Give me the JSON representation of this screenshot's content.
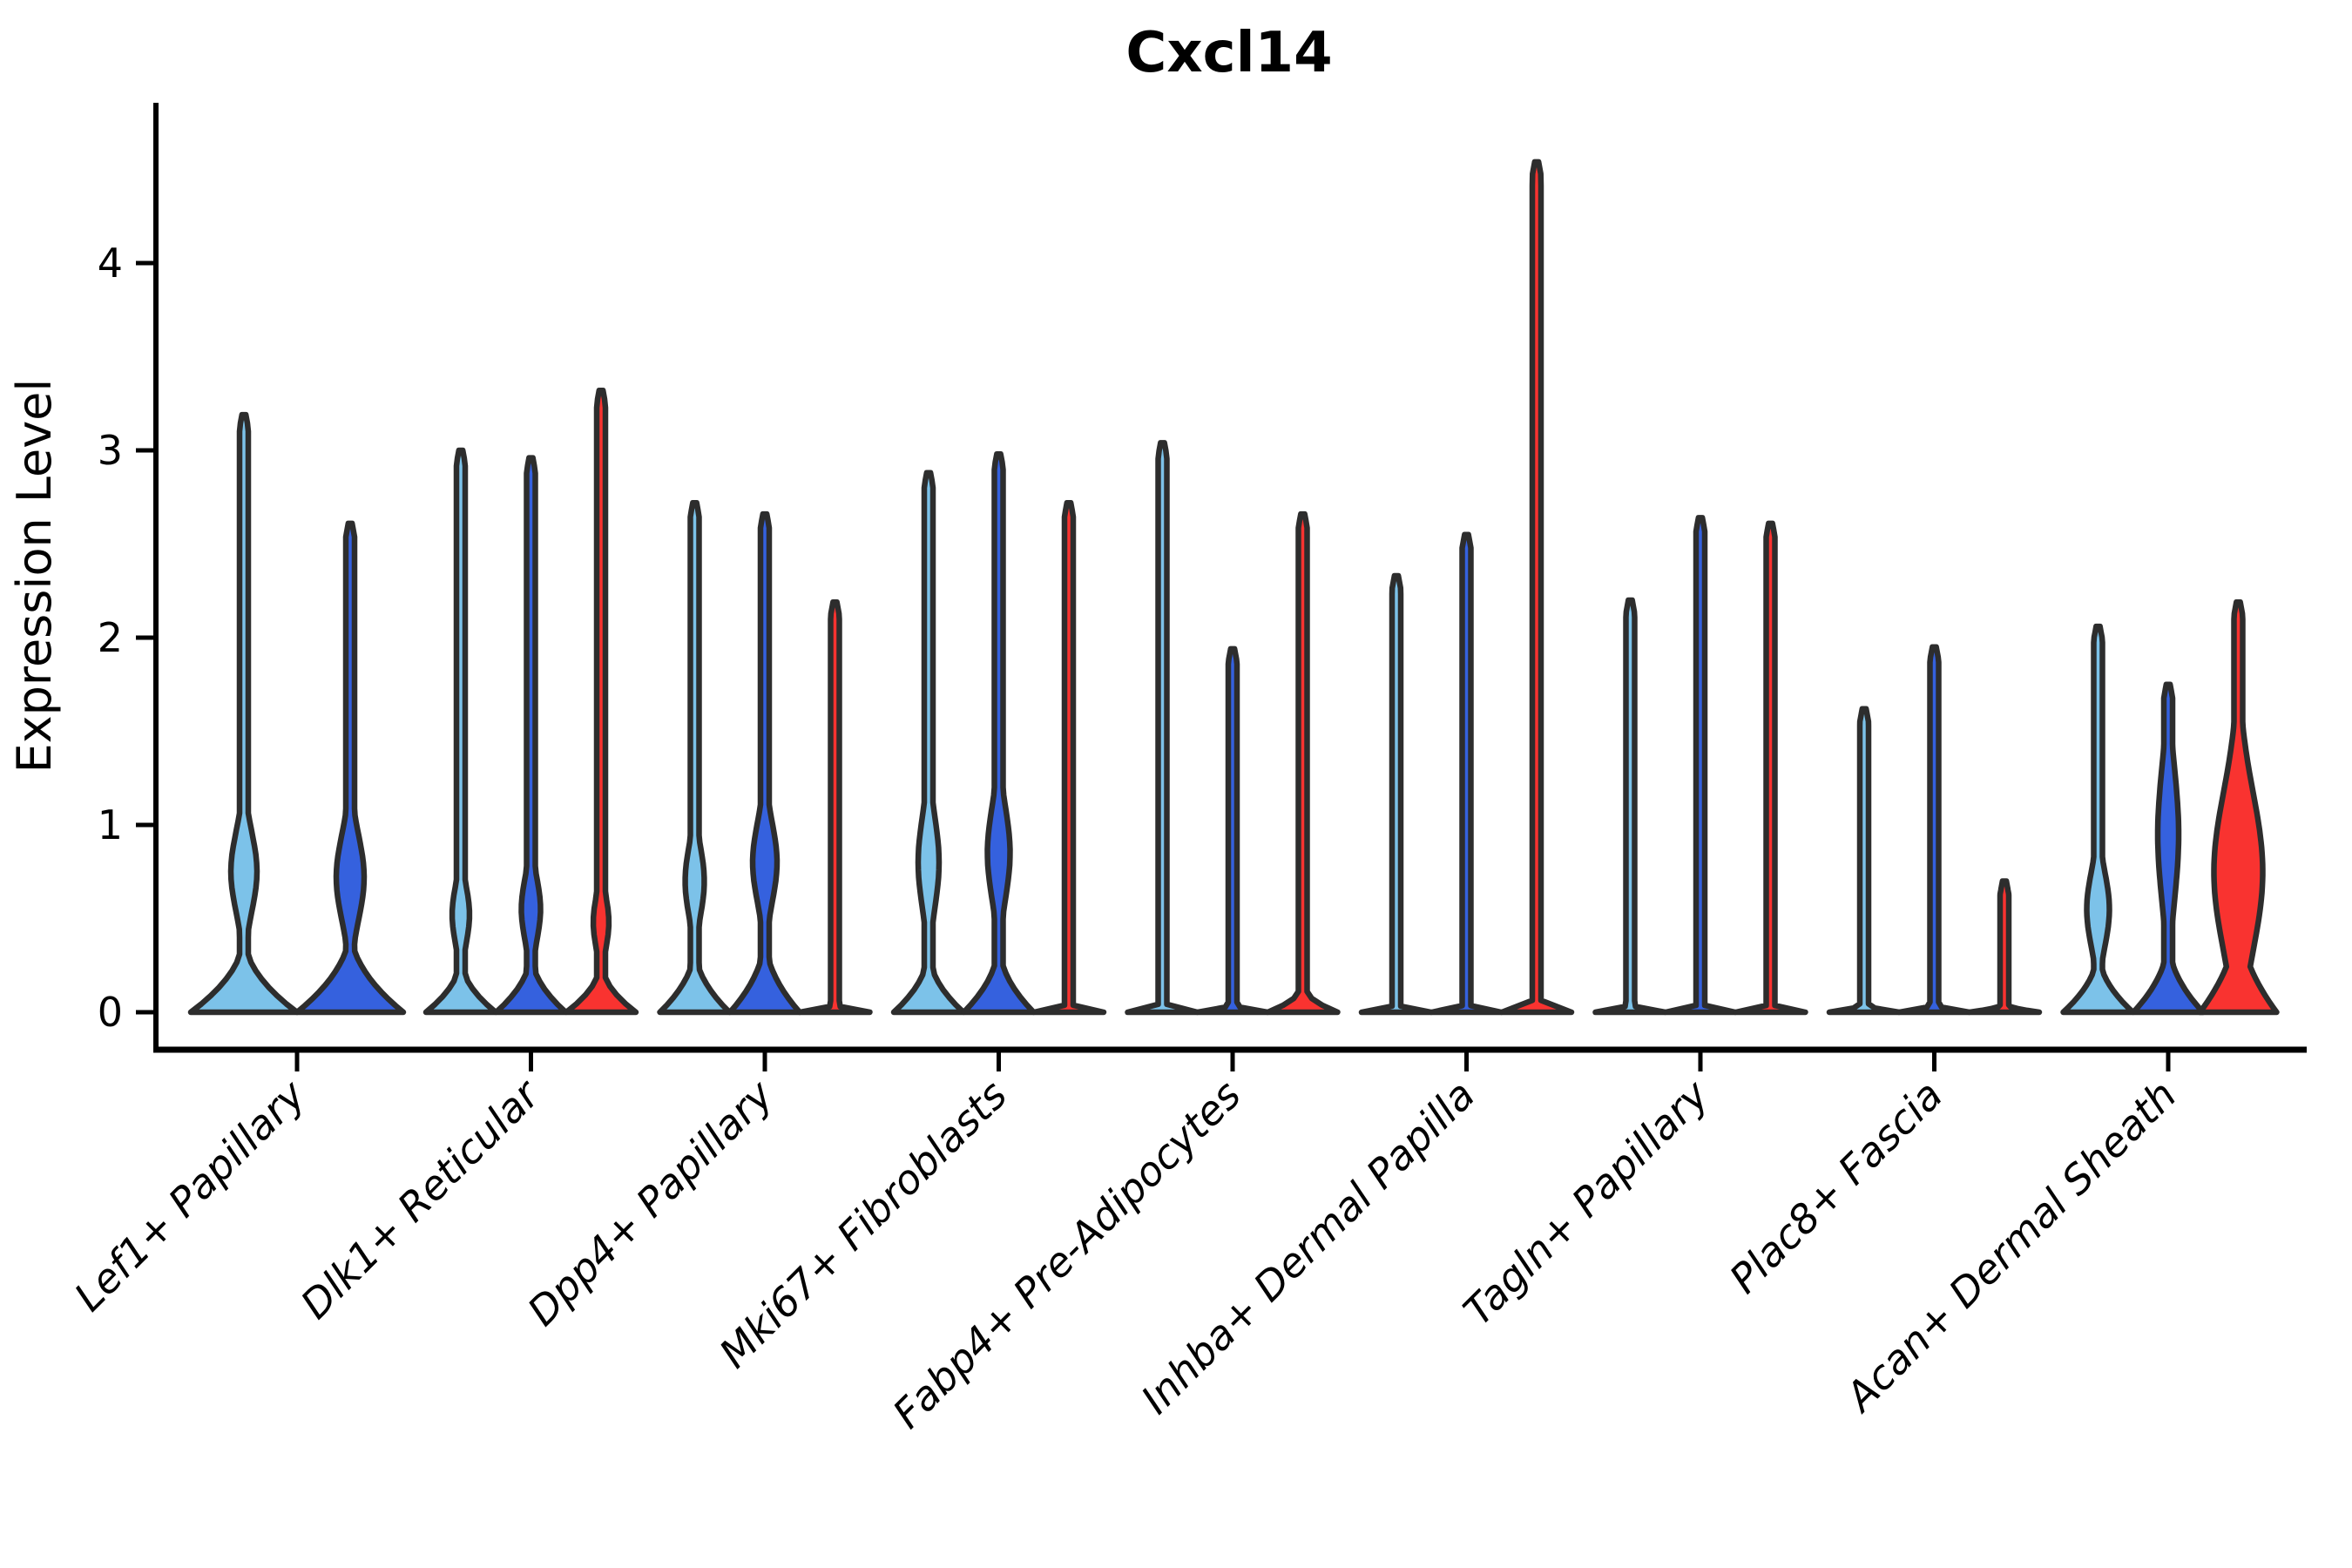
{
  "figure": {
    "background": "#ffffff"
  },
  "chart_data": {
    "type": "violin",
    "title": "Cxcl14",
    "xlabel": "",
    "ylabel": "Expression Level",
    "yticks": [
      0,
      1,
      2,
      3,
      4
    ],
    "ylim": [
      0,
      4.85
    ],
    "grid": false,
    "legend": null,
    "colors": {
      "light_blue": "#7CC2E9",
      "dark_blue": "#3561DE",
      "red": "#F93330",
      "outline": "#2D2D2D",
      "axis": "#000000",
      "text": "#000000"
    },
    "categories": [
      "Lef1+ Papillary",
      "Dlk1+ Reticular",
      "Dpp4+ Papillary",
      "Mki67+ Fibroblasts",
      "Fabp4+ Pre-Adipocytes",
      "Inhba+ Dermal Papilla",
      "Tagln+ Papillary",
      "Plac8+ Fascia",
      "Acan+ Dermal Sheath"
    ],
    "groups": [
      {
        "category": "Lef1+ Papillary",
        "violins": [
          {
            "hue": "light_blue",
            "max": 3.19,
            "base_hw": 61,
            "base_h": 0.42,
            "bulge_v": 0.75,
            "bulge_hw": 15,
            "bulge_sigma": 0.3
          },
          {
            "hue": "dark_blue",
            "max": 2.61,
            "base_hw": 61,
            "base_h": 0.46,
            "bulge_v": 0.72,
            "bulge_hw": 16,
            "bulge_sigma": 0.32
          }
        ]
      },
      {
        "category": "Dlk1+ Reticular",
        "violins": [
          {
            "hue": "light_blue",
            "max": 3.0,
            "base_hw": 40,
            "base_h": 0.3,
            "bulge_v": 0.52,
            "bulge_hw": 10,
            "bulge_sigma": 0.22
          },
          {
            "hue": "dark_blue",
            "max": 2.96,
            "base_hw": 40,
            "base_h": 0.33,
            "bulge_v": 0.55,
            "bulge_hw": 11,
            "bulge_sigma": 0.24
          },
          {
            "hue": "red",
            "max": 3.32,
            "base_hw": 40,
            "base_h": 0.28,
            "bulge_v": 0.48,
            "bulge_hw": 9,
            "bulge_sigma": 0.2
          }
        ]
      },
      {
        "category": "Dpp4+ Papillary",
        "violins": [
          {
            "hue": "light_blue",
            "max": 2.72,
            "base_hw": 40,
            "base_h": 0.36,
            "bulge_v": 0.7,
            "bulge_hw": 11,
            "bulge_sigma": 0.26
          },
          {
            "hue": "dark_blue",
            "max": 2.66,
            "base_hw": 40,
            "base_h": 0.42,
            "bulge_v": 0.8,
            "bulge_hw": 14,
            "bulge_sigma": 0.3
          },
          {
            "hue": "red",
            "max": 2.19,
            "base_hw": 40,
            "base_h": 0.05,
            "bulge_v": null,
            "bulge_hw": 0,
            "bulge_sigma": 0
          }
        ]
      },
      {
        "category": "Mki67+ Fibroblasts",
        "violins": [
          {
            "hue": "light_blue",
            "max": 2.88,
            "base_hw": 40,
            "base_h": 0.34,
            "bulge_v": 0.8,
            "bulge_hw": 12,
            "bulge_sigma": 0.34
          },
          {
            "hue": "dark_blue",
            "max": 2.98,
            "base_hw": 40,
            "base_h": 0.38,
            "bulge_v": 0.85,
            "bulge_hw": 13,
            "bulge_sigma": 0.34
          },
          {
            "hue": "red",
            "max": 2.72,
            "base_hw": 40,
            "base_h": 0.05,
            "bulge_v": null,
            "bulge_hw": 0,
            "bulge_sigma": 0
          }
        ]
      },
      {
        "category": "Fabp4+ Pre-Adipocytes",
        "violins": [
          {
            "hue": "light_blue",
            "max": 3.04,
            "base_hw": 40,
            "base_h": 0.05,
            "bulge_v": null,
            "bulge_hw": 0,
            "bulge_sigma": 0
          },
          {
            "hue": "dark_blue",
            "max": 1.94,
            "base_hw": 40,
            "base_h": 0.05,
            "bulge_v": null,
            "bulge_hw": 0,
            "bulge_sigma": 0
          },
          {
            "hue": "red",
            "max": 2.66,
            "base_hw": 40,
            "base_h": 0.15,
            "bulge_v": null,
            "bulge_hw": 0,
            "bulge_sigma": 0
          }
        ]
      },
      {
        "category": "Inhba+ Dermal Papilla",
        "violins": [
          {
            "hue": "light_blue",
            "max": 2.33,
            "base_hw": 40,
            "base_h": 0.05,
            "bulge_v": null,
            "bulge_hw": 0,
            "bulge_sigma": 0
          },
          {
            "hue": "dark_blue",
            "max": 2.55,
            "base_hw": 40,
            "base_h": 0.05,
            "bulge_v": null,
            "bulge_hw": 0,
            "bulge_sigma": 0
          },
          {
            "hue": "red",
            "max": 4.54,
            "base_hw": 40,
            "base_h": 0.05,
            "bulge_v": null,
            "bulge_hw": 0,
            "bulge_sigma": 0
          }
        ]
      },
      {
        "category": "Tagln+ Papillary",
        "violins": [
          {
            "hue": "light_blue",
            "max": 2.2,
            "base_hw": 40,
            "base_h": 0.05,
            "bulge_v": null,
            "bulge_hw": 0,
            "bulge_sigma": 0
          },
          {
            "hue": "dark_blue",
            "max": 2.64,
            "base_hw": 40,
            "base_h": 0.05,
            "bulge_v": null,
            "bulge_hw": 0,
            "bulge_sigma": 0
          },
          {
            "hue": "red",
            "max": 2.61,
            "base_hw": 40,
            "base_h": 0.05,
            "bulge_v": null,
            "bulge_hw": 0,
            "bulge_sigma": 0
          }
        ]
      },
      {
        "category": "Plac8+ Fascia",
        "violins": [
          {
            "hue": "light_blue",
            "max": 1.62,
            "base_hw": 40,
            "base_h": 0.05,
            "bulge_v": null,
            "bulge_hw": 0,
            "bulge_sigma": 0
          },
          {
            "hue": "dark_blue",
            "max": 1.95,
            "base_hw": 40,
            "base_h": 0.05,
            "bulge_v": null,
            "bulge_hw": 0,
            "bulge_sigma": 0
          },
          {
            "hue": "red",
            "max": 0.7,
            "base_hw": 40,
            "base_h": 0.05,
            "bulge_v": null,
            "bulge_hw": 0,
            "bulge_sigma": 0
          }
        ]
      },
      {
        "category": "Acan+ Dermal Sheath",
        "violins": [
          {
            "hue": "light_blue",
            "max": 2.06,
            "base_hw": 40,
            "base_h": 0.34,
            "bulge_v": 0.55,
            "bulge_hw": 13,
            "bulge_sigma": 0.28
          },
          {
            "hue": "dark_blue",
            "max": 1.75,
            "base_hw": 40,
            "base_h": 0.4,
            "bulge_v": 0.95,
            "bulge_hw": 12,
            "bulge_sigma": 0.5
          },
          {
            "hue": "red",
            "max": 2.19,
            "base_hw": 44,
            "base_h": 0.55,
            "bulge_v": 0.75,
            "bulge_hw": 28,
            "bulge_sigma": 0.6
          }
        ]
      }
    ]
  }
}
